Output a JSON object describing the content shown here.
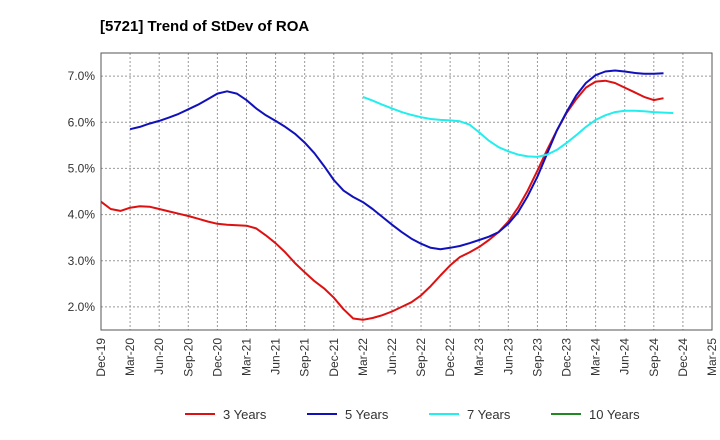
{
  "chart_data": {
    "type": "line",
    "title": "[5721]  Trend of StDev of ROA",
    "xlabel": "",
    "ylabel": "",
    "ylim": [
      1.5,
      7.5
    ],
    "y_ticks": [
      2.0,
      3.0,
      4.0,
      5.0,
      6.0,
      7.0
    ],
    "y_tick_labels": [
      "2.0%",
      "3.0%",
      "4.0%",
      "5.0%",
      "6.0%",
      "7.0%"
    ],
    "x_tick_labels": [
      "Dec-19",
      "Mar-20",
      "Jun-20",
      "Sep-20",
      "Dec-20",
      "Mar-21",
      "Jun-21",
      "Sep-21",
      "Dec-21",
      "Mar-22",
      "Jun-22",
      "Sep-22",
      "Dec-22",
      "Mar-23",
      "Jun-23",
      "Sep-23",
      "Dec-23",
      "Mar-24",
      "Jun-24",
      "Sep-24",
      "Dec-24",
      "Mar-25"
    ],
    "grid": true,
    "legend_position": "bottom",
    "series": [
      {
        "name": "3 Years",
        "color": "#dd1111",
        "start_index": 0,
        "values": [
          4.28,
          4.12,
          4.08,
          4.15,
          4.18,
          4.17,
          4.12,
          4.07,
          4.02,
          3.97,
          3.91,
          3.85,
          3.8,
          3.78,
          3.77,
          3.76,
          3.7,
          3.55,
          3.38,
          3.18,
          2.95,
          2.75,
          2.56,
          2.4,
          2.2,
          1.95,
          1.75,
          1.72,
          1.76,
          1.82,
          1.9,
          2.0,
          2.1,
          2.25,
          2.45,
          2.68,
          2.9,
          3.08,
          3.18,
          3.3,
          3.45,
          3.62,
          3.85,
          4.15,
          4.52,
          4.95,
          5.4,
          5.82,
          6.2,
          6.5,
          6.75,
          6.88,
          6.9,
          6.85,
          6.75,
          6.65,
          6.55,
          6.48,
          6.52
        ]
      },
      {
        "name": "5 Years",
        "color": "#1111bb",
        "start_index": 3,
        "values": [
          5.85,
          5.9,
          5.97,
          6.03,
          6.1,
          6.18,
          6.28,
          6.38,
          6.5,
          6.62,
          6.67,
          6.62,
          6.48,
          6.3,
          6.15,
          6.03,
          5.9,
          5.75,
          5.56,
          5.33,
          5.05,
          4.75,
          4.52,
          4.38,
          4.27,
          4.12,
          3.95,
          3.78,
          3.62,
          3.48,
          3.37,
          3.28,
          3.25,
          3.28,
          3.32,
          3.38,
          3.45,
          3.52,
          3.62,
          3.8,
          4.05,
          4.4,
          4.82,
          5.32,
          5.82,
          6.22,
          6.58,
          6.85,
          7.02,
          7.1,
          7.12,
          7.1,
          7.07,
          7.05,
          7.05,
          7.06
        ]
      },
      {
        "name": "7 Years",
        "color": "#22eeee",
        "start_index": 27,
        "values": [
          6.55,
          6.47,
          6.38,
          6.3,
          6.22,
          6.16,
          6.11,
          6.07,
          6.05,
          6.04,
          6.02,
          5.95,
          5.78,
          5.6,
          5.46,
          5.37,
          5.3,
          5.26,
          5.25,
          5.3,
          5.4,
          5.55,
          5.72,
          5.9,
          6.05,
          6.15,
          6.22,
          6.25,
          6.25,
          6.24,
          6.22,
          6.21,
          6.2
        ]
      },
      {
        "name": "10 Years",
        "color": "#228822",
        "start_index": 0,
        "values": []
      }
    ]
  }
}
